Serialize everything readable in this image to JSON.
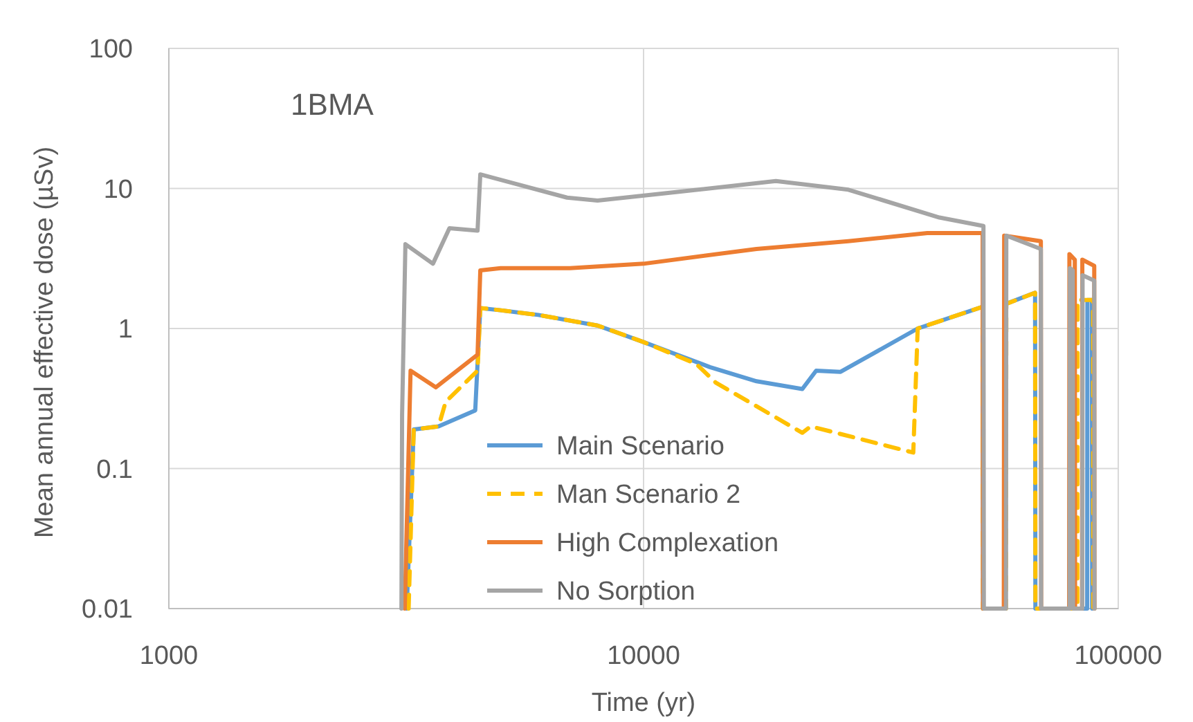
{
  "chart_data": {
    "type": "line",
    "xlabel": "Time (yr)",
    "ylabel": "Mean annual effective dose (µSv)",
    "annotations": [
      "1BMA"
    ],
    "log": "xy",
    "grid": true,
    "legend": "bottom",
    "marker": "none",
    "xlim": [
      1000,
      100000
    ],
    "xticks": [
      1000,
      10000,
      100000
    ],
    "ylim": [
      0.01,
      100
    ],
    "yticks": [
      0.01,
      0.1,
      1,
      10,
      100
    ],
    "series": [
      {
        "name": "Main Scenario",
        "color": "#5b9bd5",
        "line_style": "solid",
        "x": [
          3170,
          3280,
          3700,
          4420,
          4530,
          5000,
          6000,
          8000,
          10000,
          13800,
          17300,
          21600,
          23100,
          26000,
          37800,
          51800,
          51900,
          57900,
          58000,
          66800,
          66900,
          79500,
          79600,
          80000,
          80100,
          86000,
          86100,
          88000,
          88100
        ],
        "values": [
          0.01,
          0.19,
          0.2,
          0.26,
          1.4,
          1.35,
          1.25,
          1.05,
          0.8,
          0.53,
          0.42,
          0.37,
          0.5,
          0.49,
          1.0,
          1.43,
          0.01,
          0.01,
          1.5,
          1.8,
          0.01,
          0.01,
          1.6,
          1.6,
          0.01,
          0.01,
          1.6,
          1.6,
          0.01
        ]
      },
      {
        "name": "Man Scenario 2",
        "color": "#ffc000",
        "line_style": "dashed",
        "x": [
          3200,
          3280,
          3700,
          3830,
          4470,
          4530,
          5000,
          6000,
          8000,
          10000,
          12900,
          14200,
          21600,
          22500,
          37000,
          37800,
          51800,
          51900,
          58000,
          58100,
          66800,
          66900,
          82000,
          82100,
          88500,
          88600
        ],
        "values": [
          0.01,
          0.19,
          0.2,
          0.3,
          0.5,
          1.4,
          1.35,
          1.25,
          1.05,
          0.8,
          0.56,
          0.41,
          0.18,
          0.2,
          0.13,
          1.0,
          1.43,
          0.01,
          0.01,
          1.5,
          1.8,
          0.01,
          0.01,
          1.6,
          1.6,
          0.01
        ]
      },
      {
        "name": "High Complexation",
        "color": "#ed7d31",
        "line_style": "solid",
        "x": [
          3140,
          3230,
          3650,
          4470,
          4530,
          5000,
          7000,
          10000,
          17300,
          27000,
          39600,
          51800,
          51900,
          57400,
          57500,
          68700,
          68800,
          78800,
          78900,
          81000,
          81100,
          83900,
          84000,
          89000,
          89100
        ],
        "values": [
          0.01,
          0.5,
          0.38,
          0.65,
          2.6,
          2.7,
          2.7,
          2.9,
          3.7,
          4.2,
          4.8,
          4.8,
          0.01,
          0.01,
          4.6,
          4.2,
          0.01,
          0.01,
          3.4,
          3.1,
          0.01,
          0.01,
          3.1,
          2.8,
          0.01
        ]
      },
      {
        "name": "No Sorption",
        "color": "#a5a5a5",
        "line_style": "solid",
        "x": [
          3090,
          3100,
          3150,
          3600,
          3900,
          4470,
          4530,
          6900,
          8000,
          11000,
          19000,
          27000,
          42000,
          52000,
          52100,
          58000,
          58100,
          68700,
          68800,
          79000,
          79100,
          80200,
          80300,
          84000,
          84100,
          89000,
          89100
        ],
        "values": [
          0.01,
          0.24,
          4,
          2.9,
          5.2,
          5,
          12.6,
          8.6,
          8.2,
          9.2,
          11.3,
          9.8,
          6.2,
          5.4,
          0.01,
          0.01,
          4.6,
          3.7,
          0.01,
          0.01,
          2.7,
          2.6,
          0.01,
          0.01,
          2.4,
          2.2,
          0.01
        ]
      }
    ]
  }
}
